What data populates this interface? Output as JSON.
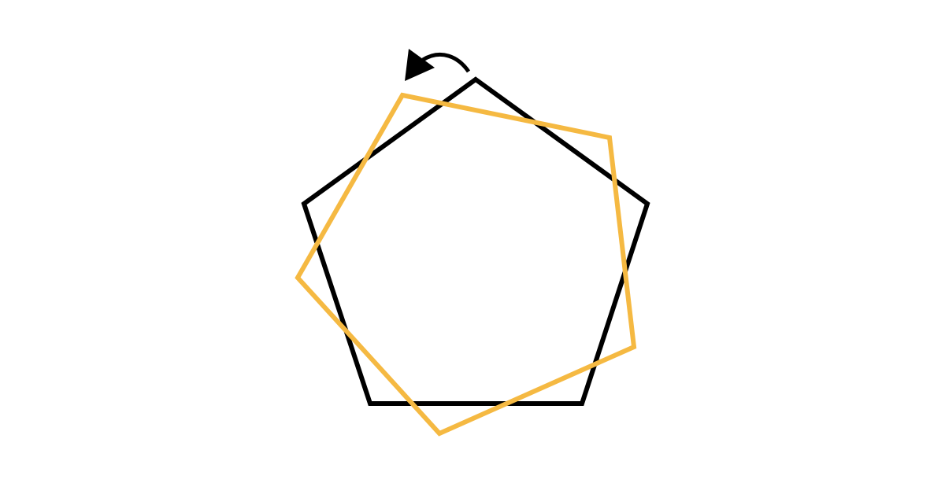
{
  "diagram": {
    "type": "polygon-rotation",
    "sides": 5,
    "rotation_direction": "counterclockwise",
    "colors": {
      "background": "#ffffff",
      "original": "#000000",
      "rotated": "#f5b942",
      "arrow": "#000000"
    },
    "shapes": [
      {
        "name": "original-pentagon",
        "color_key": "original"
      },
      {
        "name": "rotated-pentagon",
        "color_key": "rotated"
      }
    ]
  }
}
